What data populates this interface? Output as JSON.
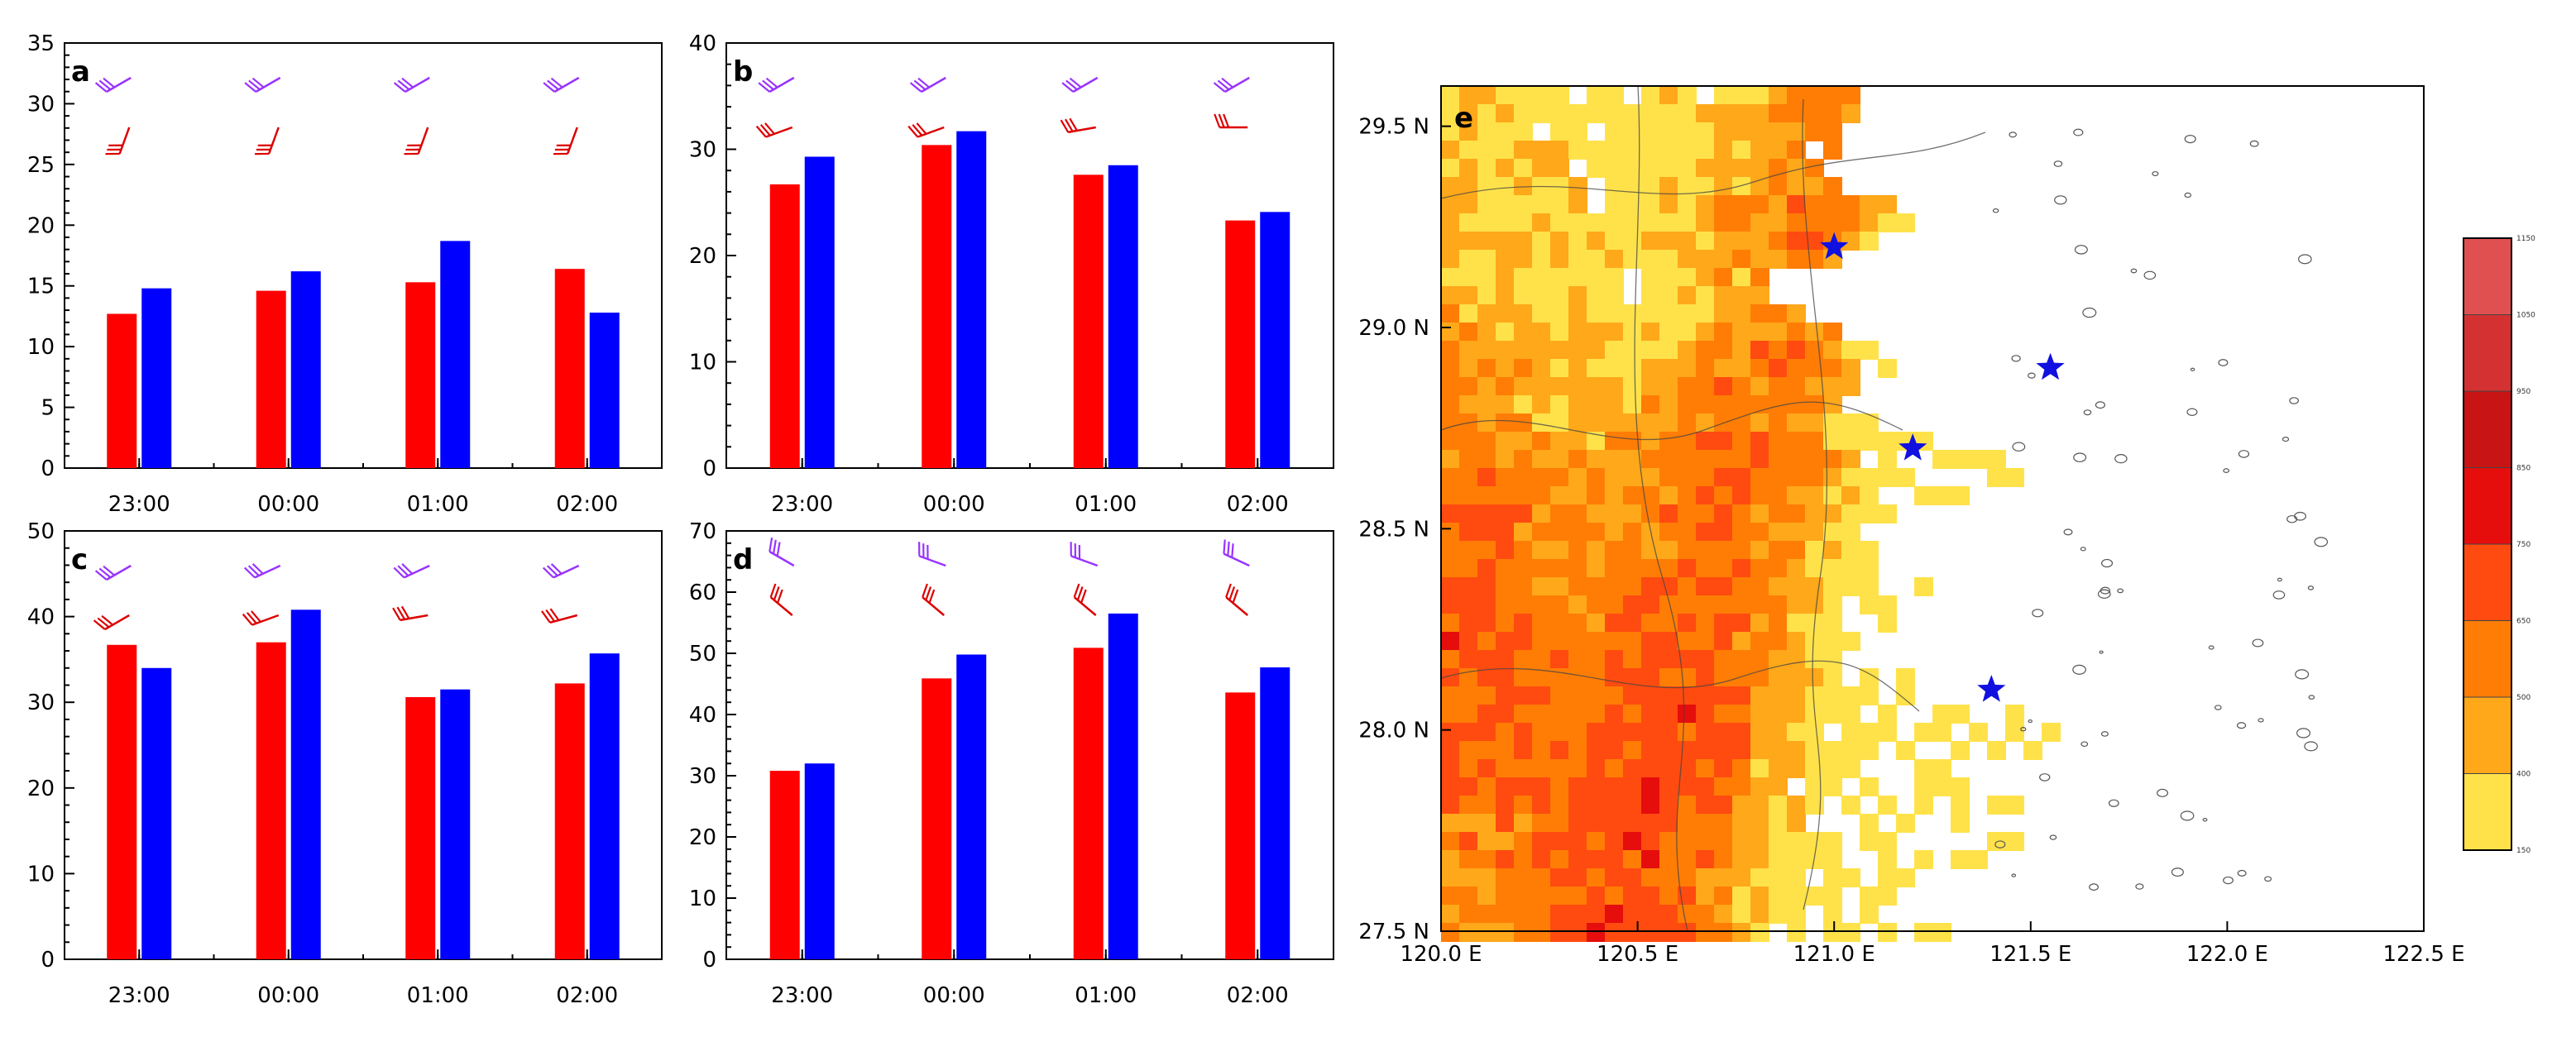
{
  "chart_data": [
    {
      "panel": "a",
      "type": "bar",
      "categories": [
        "23:00",
        "00:00",
        "01:00",
        "02:00"
      ],
      "series": [
        {
          "color": "#ff0000",
          "values": [
            12.7,
            14.6,
            15.3,
            16.4
          ]
        },
        {
          "color": "#0000ff",
          "values": [
            14.8,
            16.2,
            18.7,
            12.8
          ]
        }
      ],
      "ylim": [
        0,
        35
      ],
      "yticks": [
        0,
        5,
        10,
        15,
        20,
        25,
        30,
        35
      ],
      "wind_barbs": {
        "upper_color": "#9933ff",
        "lower_color": "#dd0000",
        "upper_dir_deg": [
          240,
          240,
          240,
          240
        ],
        "lower_dir_deg": [
          200,
          200,
          200,
          200
        ]
      }
    },
    {
      "panel": "b",
      "type": "bar",
      "categories": [
        "23:00",
        "00:00",
        "01:00",
        "02:00"
      ],
      "series": [
        {
          "color": "#ff0000",
          "values": [
            26.7,
            30.4,
            27.6,
            23.3
          ]
        },
        {
          "color": "#0000ff",
          "values": [
            29.3,
            31.7,
            28.5,
            24.1
          ]
        }
      ],
      "ylim": [
        0,
        40
      ],
      "yticks": [
        0,
        10,
        20,
        30,
        40
      ],
      "wind_barbs": {
        "upper_color": "#9933ff",
        "lower_color": "#dd0000",
        "upper_dir_deg": [
          240,
          240,
          240,
          240
        ],
        "lower_dir_deg": [
          250,
          250,
          260,
          270
        ]
      }
    },
    {
      "panel": "c",
      "type": "bar",
      "categories": [
        "23:00",
        "00:00",
        "01:00",
        "02:00"
      ],
      "series": [
        {
          "color": "#ff0000",
          "values": [
            36.7,
            37.0,
            30.6,
            32.2
          ]
        },
        {
          "color": "#0000ff",
          "values": [
            34.0,
            40.8,
            31.5,
            35.7
          ]
        }
      ],
      "ylim": [
        0,
        50
      ],
      "yticks": [
        0,
        10,
        20,
        30,
        40,
        50
      ],
      "wind_barbs": {
        "upper_color": "#9933ff",
        "lower_color": "#dd0000",
        "upper_dir_deg": [
          240,
          245,
          245,
          245
        ],
        "lower_dir_deg": [
          240,
          250,
          260,
          255
        ]
      }
    },
    {
      "panel": "d",
      "type": "bar",
      "categories": [
        "23:00",
        "00:00",
        "01:00",
        "02:00"
      ],
      "series": [
        {
          "color": "#ff0000",
          "values": [
            30.8,
            45.9,
            50.9,
            43.6
          ]
        },
        {
          "color": "#0000ff",
          "values": [
            32.0,
            49.8,
            56.5,
            47.7
          ]
        }
      ],
      "ylim": [
        0,
        70
      ],
      "yticks": [
        0,
        10,
        20,
        30,
        40,
        50,
        60,
        70
      ],
      "wind_barbs": {
        "upper_color": "#9933ff",
        "lower_color": "#dd0000",
        "upper_dir_deg": [
          300,
          290,
          290,
          295
        ],
        "lower_dir_deg": [
          310,
          310,
          310,
          310
        ]
      }
    },
    {
      "panel": "e",
      "type": "heatmap",
      "xticks": [
        "120.0 E",
        "120.5 E",
        "121.0 E",
        "121.5 E",
        "122.0 E",
        "122.5 E"
      ],
      "yticks": [
        "27.5 N",
        "28.0 N",
        "28.5 N",
        "29.0 N",
        "29.5 N"
      ],
      "xlim": [
        120.0,
        122.5
      ],
      "ylim": [
        27.5,
        29.6
      ],
      "stations": [
        {
          "lon": 121.0,
          "lat": 29.2
        },
        {
          "lon": 121.55,
          "lat": 28.9
        },
        {
          "lon": 121.2,
          "lat": 28.7
        },
        {
          "lon": 121.4,
          "lat": 28.1
        }
      ],
      "colorbar": {
        "labels": [
          "150",
          "400",
          "500",
          "650",
          "750",
          "850",
          "950",
          "1050",
          "1150"
        ],
        "colors": [
          "#ffe24a",
          "#ffa81a",
          "#ff7d05",
          "#ff4b0f",
          "#e60d0d",
          "#c81414",
          "#d43232",
          "#e05050"
        ]
      }
    }
  ]
}
